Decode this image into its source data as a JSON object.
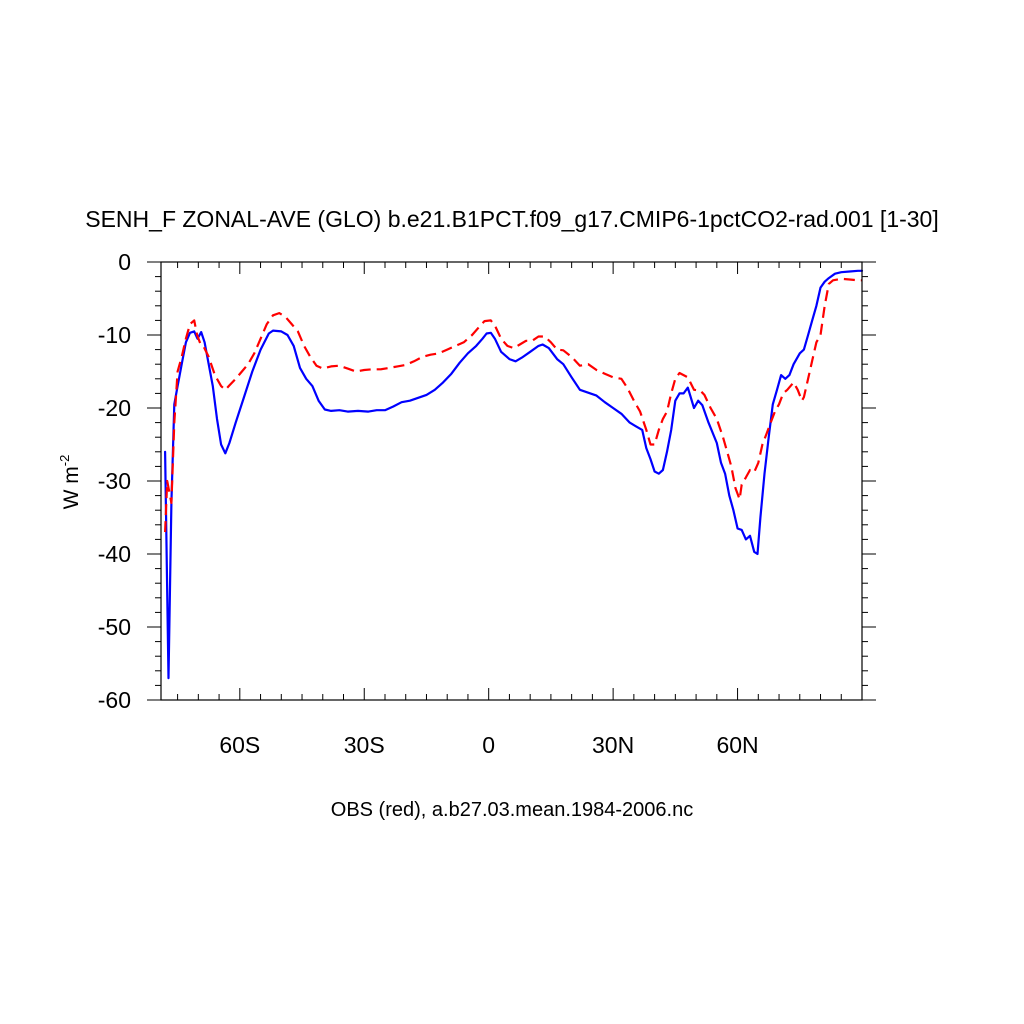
{
  "chart_data": {
    "type": "line",
    "title": "SENH_F ZONAL-AVE (GLO) b.e21.B1PCT.f09_g17.CMIP6-1pctCO2-rad.001 [1-30]",
    "xlabel": "OBS (red), a.b27.03.mean.1984-2006.nc",
    "ylabel_main": "W m",
    "ylabel_sup": "-2",
    "xlim": [
      -79,
      90
    ],
    "ylim": [
      -60,
      0
    ],
    "xticks": [
      {
        "value": -60,
        "label": "60S"
      },
      {
        "value": -30,
        "label": "30S"
      },
      {
        "value": 0,
        "label": "0"
      },
      {
        "value": 30,
        "label": "30N"
      },
      {
        "value": 60,
        "label": "60N"
      }
    ],
    "yticks": [
      {
        "value": 0,
        "label": "0"
      },
      {
        "value": -10,
        "label": "-10"
      },
      {
        "value": -20,
        "label": "-20"
      },
      {
        "value": -30,
        "label": "-30"
      },
      {
        "value": -40,
        "label": "-40"
      },
      {
        "value": -50,
        "label": "-50"
      },
      {
        "value": -60,
        "label": "-60"
      }
    ],
    "grid": false,
    "series": [
      {
        "color": "#0000ff",
        "dash": "solid",
        "points": [
          [
            -78,
            -26
          ],
          [
            -77.2,
            -57
          ],
          [
            -76.5,
            -33
          ],
          [
            -75.8,
            -19.5
          ],
          [
            -75,
            -17
          ],
          [
            -74,
            -14
          ],
          [
            -73,
            -11
          ],
          [
            -72,
            -9.7
          ],
          [
            -71,
            -9.5
          ],
          [
            -70.2,
            -10.5
          ],
          [
            -69.3,
            -9.6
          ],
          [
            -68.5,
            -11
          ],
          [
            -67.5,
            -14
          ],
          [
            -66.5,
            -17
          ],
          [
            -65.5,
            -21.5
          ],
          [
            -64.5,
            -25
          ],
          [
            -63.5,
            -26.2
          ],
          [
            -62.5,
            -24.8
          ],
          [
            -61,
            -22
          ],
          [
            -59,
            -18.5
          ],
          [
            -57,
            -15
          ],
          [
            -55,
            -12
          ],
          [
            -53,
            -9.8
          ],
          [
            -52,
            -9.4
          ],
          [
            -50,
            -9.5
          ],
          [
            -48.5,
            -10
          ],
          [
            -47,
            -11.5
          ],
          [
            -45.5,
            -14.5
          ],
          [
            -44,
            -16
          ],
          [
            -42.5,
            -17
          ],
          [
            -41,
            -19
          ],
          [
            -39.5,
            -20.2
          ],
          [
            -38,
            -20.4
          ],
          [
            -36,
            -20.3
          ],
          [
            -34,
            -20.5
          ],
          [
            -31.5,
            -20.4
          ],
          [
            -29,
            -20.5
          ],
          [
            -27,
            -20.3
          ],
          [
            -25,
            -20.3
          ],
          [
            -23,
            -19.8
          ],
          [
            -21,
            -19.2
          ],
          [
            -19,
            -19
          ],
          [
            -17,
            -18.6
          ],
          [
            -15,
            -18.2
          ],
          [
            -13,
            -17.5
          ],
          [
            -11,
            -16.5
          ],
          [
            -9,
            -15.3
          ],
          [
            -7,
            -13.8
          ],
          [
            -5,
            -12.5
          ],
          [
            -3,
            -11.5
          ],
          [
            -1.5,
            -10.5
          ],
          [
            -0.5,
            -9.8
          ],
          [
            0.5,
            -9.7
          ],
          [
            1.5,
            -10.5
          ],
          [
            3,
            -12.3
          ],
          [
            5,
            -13.3
          ],
          [
            6.5,
            -13.6
          ],
          [
            8,
            -13.1
          ],
          [
            10,
            -12.3
          ],
          [
            12,
            -11.5
          ],
          [
            13,
            -11.3
          ],
          [
            14.5,
            -11.8
          ],
          [
            16.5,
            -13.3
          ],
          [
            18,
            -14
          ],
          [
            20,
            -15.8
          ],
          [
            22,
            -17.5
          ],
          [
            24,
            -17.9
          ],
          [
            26,
            -18.3
          ],
          [
            28,
            -19.2
          ],
          [
            30,
            -20
          ],
          [
            32,
            -20.8
          ],
          [
            34,
            -22
          ],
          [
            35.5,
            -22.5
          ],
          [
            37,
            -23
          ],
          [
            38,
            -25.5
          ],
          [
            39,
            -27
          ],
          [
            40,
            -28.7
          ],
          [
            41,
            -29
          ],
          [
            42,
            -28.5
          ],
          [
            43,
            -26
          ],
          [
            44,
            -23
          ],
          [
            45,
            -19
          ],
          [
            46,
            -18
          ],
          [
            47,
            -18
          ],
          [
            48,
            -17.2
          ],
          [
            49.5,
            -20
          ],
          [
            50.5,
            -19
          ],
          [
            51.5,
            -19.6
          ],
          [
            53,
            -22
          ],
          [
            55,
            -24.8
          ],
          [
            56,
            -27.5
          ],
          [
            57,
            -29
          ],
          [
            58,
            -32
          ],
          [
            59,
            -34
          ],
          [
            60,
            -36.5
          ],
          [
            61,
            -36.7
          ],
          [
            62,
            -38
          ],
          [
            63,
            -37.5
          ],
          [
            64,
            -39.7
          ],
          [
            64.8,
            -40
          ],
          [
            65.5,
            -35
          ],
          [
            66.5,
            -29
          ],
          [
            67.5,
            -24
          ],
          [
            68.5,
            -19.5
          ],
          [
            69.5,
            -17.5
          ],
          [
            70.5,
            -15.5
          ],
          [
            71.5,
            -16
          ],
          [
            72.5,
            -15.5
          ],
          [
            73.5,
            -14
          ],
          [
            75,
            -12.5
          ],
          [
            76,
            -12
          ],
          [
            77,
            -10
          ],
          [
            78,
            -8
          ],
          [
            79,
            -6
          ],
          [
            80,
            -3.5
          ],
          [
            81,
            -2.7
          ],
          [
            82,
            -2.2
          ],
          [
            83.5,
            -1.6
          ],
          [
            85,
            -1.4
          ],
          [
            87,
            -1.3
          ],
          [
            89,
            -1.2
          ],
          [
            90,
            -1.2
          ]
        ]
      },
      {
        "color": "#ff0000",
        "dash": "dashed",
        "points": [
          [
            -78,
            -37
          ],
          [
            -77.5,
            -30
          ],
          [
            -76.5,
            -33
          ],
          [
            -75.8,
            -22
          ],
          [
            -75,
            -15
          ],
          [
            -74,
            -13
          ],
          [
            -73,
            -10.5
          ],
          [
            -72,
            -8.5
          ],
          [
            -71,
            -8
          ],
          [
            -70.3,
            -10
          ],
          [
            -69.5,
            -11.2
          ],
          [
            -68.8,
            -11.5
          ],
          [
            -67.5,
            -13
          ],
          [
            -66,
            -15.5
          ],
          [
            -64.5,
            -17
          ],
          [
            -63.5,
            -17.5
          ],
          [
            -62.5,
            -16.9
          ],
          [
            -61,
            -16
          ],
          [
            -59.5,
            -15
          ],
          [
            -58,
            -14
          ],
          [
            -56.5,
            -12.5
          ],
          [
            -55,
            -10.5
          ],
          [
            -53.5,
            -8.5
          ],
          [
            -52,
            -7.3
          ],
          [
            -50.5,
            -7
          ],
          [
            -49,
            -7.5
          ],
          [
            -47.5,
            -8.5
          ],
          [
            -46,
            -9.5
          ],
          [
            -44.5,
            -11.5
          ],
          [
            -43,
            -13
          ],
          [
            -41.5,
            -14.2
          ],
          [
            -40,
            -14.6
          ],
          [
            -38,
            -14.3
          ],
          [
            -36,
            -14.2
          ],
          [
            -34,
            -14.6
          ],
          [
            -32,
            -15
          ],
          [
            -30,
            -14.8
          ],
          [
            -28,
            -14.7
          ],
          [
            -26,
            -14.7
          ],
          [
            -24,
            -14.5
          ],
          [
            -22,
            -14.3
          ],
          [
            -20,
            -14.1
          ],
          [
            -18,
            -13.6
          ],
          [
            -16,
            -13
          ],
          [
            -14,
            -12.7
          ],
          [
            -12,
            -12.5
          ],
          [
            -10,
            -12
          ],
          [
            -8,
            -11.5
          ],
          [
            -6,
            -11
          ],
          [
            -4,
            -10
          ],
          [
            -2,
            -8.7
          ],
          [
            -1,
            -8.1
          ],
          [
            0.5,
            -8
          ],
          [
            1.5,
            -8.7
          ],
          [
            3,
            -10.5
          ],
          [
            4.5,
            -11.5
          ],
          [
            6,
            -11.8
          ],
          [
            7.5,
            -11.3
          ],
          [
            9,
            -10.8
          ],
          [
            10.5,
            -10.8
          ],
          [
            12,
            -10.2
          ],
          [
            13.5,
            -10.2
          ],
          [
            15,
            -11
          ],
          [
            16.5,
            -12
          ],
          [
            18,
            -12.1
          ],
          [
            20,
            -13
          ],
          [
            22,
            -14.2
          ],
          [
            24,
            -14
          ],
          [
            26,
            -14.8
          ],
          [
            28,
            -15.3
          ],
          [
            30,
            -15.8
          ],
          [
            32,
            -16
          ],
          [
            33.5,
            -17.3
          ],
          [
            35,
            -19
          ],
          [
            36.5,
            -20.5
          ],
          [
            38,
            -23
          ],
          [
            39,
            -25
          ],
          [
            40,
            -25
          ],
          [
            41,
            -23
          ],
          [
            42,
            -21.5
          ],
          [
            43,
            -20.5
          ],
          [
            44,
            -18
          ],
          [
            45,
            -16
          ],
          [
            46,
            -15.2
          ],
          [
            47,
            -15.5
          ],
          [
            48,
            -15.8
          ],
          [
            49.5,
            -17.5
          ],
          [
            51,
            -17.6
          ],
          [
            52,
            -18.2
          ],
          [
            53.5,
            -20
          ],
          [
            55,
            -21.5
          ],
          [
            56.5,
            -24
          ],
          [
            57.5,
            -26
          ],
          [
            58.5,
            -28
          ],
          [
            59.5,
            -31
          ],
          [
            60.5,
            -32.5
          ],
          [
            61,
            -30.5
          ],
          [
            62,
            -29.5
          ],
          [
            63,
            -28.5
          ],
          [
            64,
            -28.8
          ],
          [
            65,
            -27.5
          ],
          [
            66,
            -25
          ],
          [
            67,
            -23.5
          ],
          [
            68,
            -22
          ],
          [
            69,
            -20.5
          ],
          [
            70,
            -19.5
          ],
          [
            71,
            -18
          ],
          [
            72,
            -17.5
          ],
          [
            73.5,
            -16.5
          ],
          [
            74.5,
            -17.5
          ],
          [
            75.5,
            -19
          ],
          [
            76,
            -18.5
          ],
          [
            77,
            -16
          ],
          [
            78,
            -13.5
          ],
          [
            79,
            -11
          ],
          [
            80,
            -10
          ],
          [
            81,
            -6
          ],
          [
            82,
            -3
          ],
          [
            83,
            -2.5
          ],
          [
            85,
            -2.3
          ],
          [
            87,
            -2.4
          ],
          [
            89,
            -2.5
          ],
          [
            90,
            -2.5
          ]
        ]
      }
    ]
  }
}
